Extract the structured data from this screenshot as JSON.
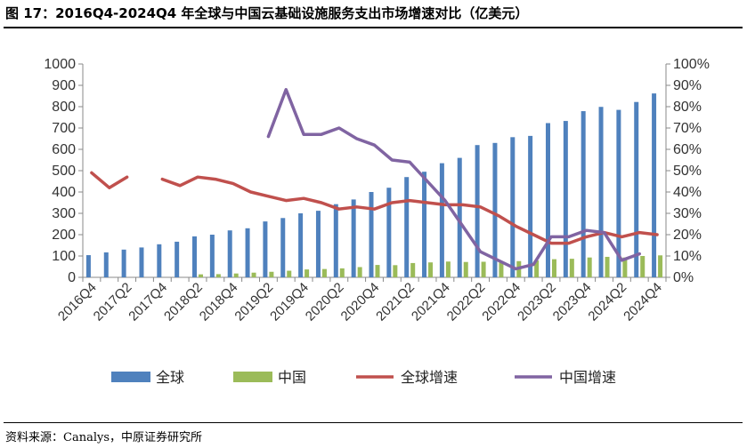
{
  "title": "图 17：2016Q4-2024Q4 年全球与中国云基础设施服务支出市场增速对比（亿美元）",
  "source": "资料来源：Canalys，中原证券研究所",
  "chart_data": {
    "type": "bar",
    "title": "",
    "ylim": [
      0,
      1000
    ],
    "y2lim": [
      0,
      1.0
    ],
    "yticks": [
      "0",
      "100",
      "200",
      "300",
      "400",
      "500",
      "600",
      "700",
      "800",
      "900",
      "1000"
    ],
    "y2ticks": [
      "0%",
      "10%",
      "20%",
      "30%",
      "40%",
      "50%",
      "60%",
      "70%",
      "80%",
      "90%",
      "100%"
    ],
    "categories": [
      "2016Q4",
      "2017Q1",
      "2017Q2",
      "2017Q3",
      "2017Q4",
      "2018Q1",
      "2018Q2",
      "2018Q3",
      "2018Q4",
      "2019Q1",
      "2019Q2",
      "2019Q3",
      "2019Q4",
      "2020Q1",
      "2020Q2",
      "2020Q3",
      "2020Q4",
      "2021Q1",
      "2021Q2",
      "2021Q3",
      "2021Q4",
      "2022Q1",
      "2022Q2",
      "2022Q3",
      "2022Q4",
      "2023Q1",
      "2023Q2",
      "2023Q3",
      "2023Q4",
      "2024Q1",
      "2024Q2",
      "2024Q3",
      "2024Q4"
    ],
    "tick_labels": [
      "2016Q4",
      "2017Q2",
      "2017Q4",
      "2018Q2",
      "2018Q4",
      "2019Q2",
      "2019Q4",
      "2020Q2",
      "2020Q4",
      "2021Q2",
      "2021Q4",
      "2022Q2",
      "2022Q4",
      "2023Q2",
      "2023Q4",
      "2024Q2",
      "2024Q4"
    ],
    "legend_position": "bottom",
    "series": [
      {
        "name": "全球",
        "kind": "bar",
        "axis": "left",
        "color": "#4F81BD",
        "values": [
          104,
          117,
          130,
          140,
          155,
          167,
          192,
          200,
          220,
          230,
          262,
          278,
          300,
          312,
          343,
          365,
          400,
          420,
          470,
          495,
          535,
          560,
          620,
          630,
          657,
          663,
          723,
          733,
          779,
          799,
          785,
          822,
          862
        ]
      },
      {
        "name": "中国",
        "kind": "bar",
        "axis": "left",
        "color": "#9BBB59",
        "values": [
          null,
          null,
          null,
          null,
          null,
          null,
          14,
          15,
          18,
          22,
          26,
          31,
          37,
          39,
          42,
          48,
          58,
          57,
          67,
          70,
          74,
          72,
          73,
          70,
          76,
          79,
          85,
          87,
          93,
          96,
          93,
          100,
          103
        ]
      },
      {
        "name": "全球增速",
        "kind": "line",
        "axis": "right",
        "color": "#C0504D",
        "values": [
          0.49,
          0.42,
          0.47,
          null,
          0.46,
          0.43,
          0.47,
          0.46,
          0.44,
          0.4,
          0.38,
          0.36,
          0.37,
          0.35,
          0.32,
          0.33,
          0.32,
          0.35,
          0.36,
          0.35,
          0.34,
          0.34,
          0.33,
          0.29,
          0.24,
          0.2,
          0.16,
          0.16,
          0.19,
          0.21,
          0.19,
          0.21,
          0.2
        ]
      },
      {
        "name": "中国增速",
        "kind": "line",
        "axis": "right",
        "color": "#8064A2",
        "values": [
          null,
          null,
          null,
          null,
          null,
          null,
          null,
          null,
          null,
          null,
          0.66,
          0.88,
          0.67,
          0.67,
          0.7,
          0.65,
          0.62,
          0.55,
          0.54,
          0.45,
          0.36,
          0.24,
          0.12,
          0.08,
          0.04,
          0.06,
          0.19,
          0.19,
          0.22,
          0.21,
          0.08,
          0.11,
          null
        ]
      }
    ]
  }
}
